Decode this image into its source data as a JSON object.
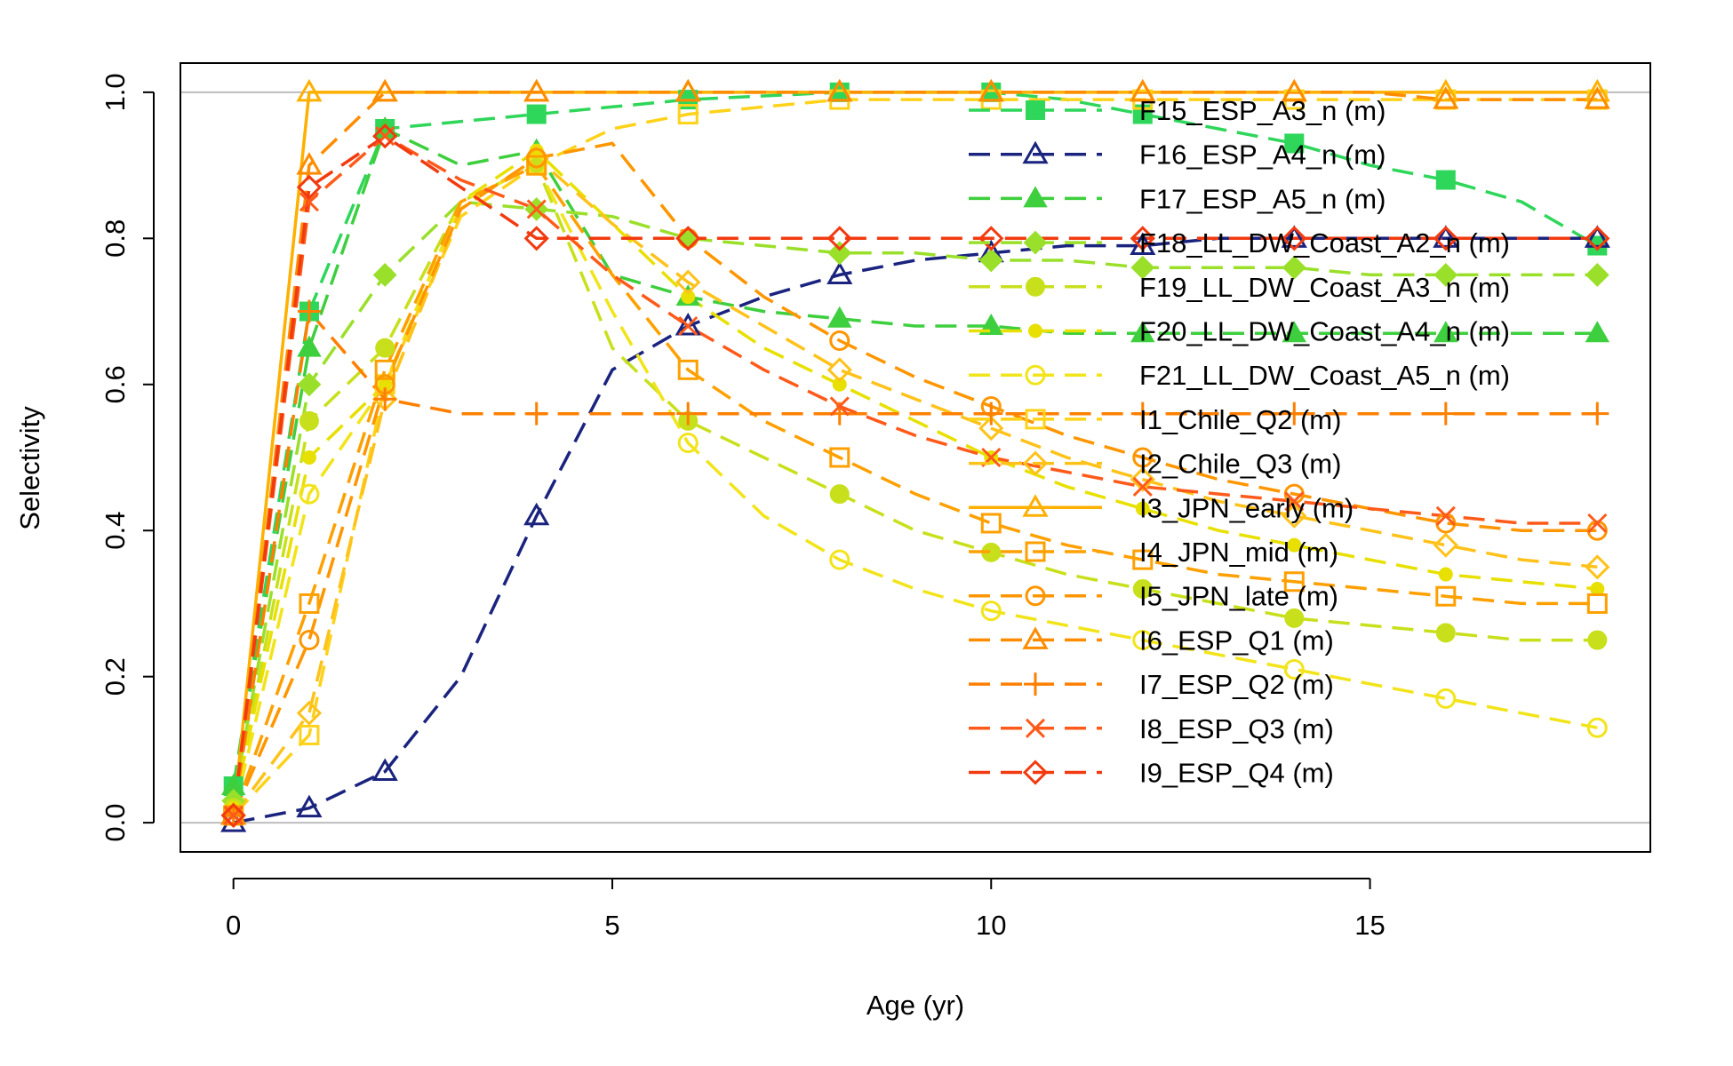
{
  "chart_data": {
    "type": "line",
    "xlabel": "Age (yr)",
    "ylabel": "Selectivity",
    "xlim": [
      -0.7,
      18.7
    ],
    "ylim": [
      -0.04,
      1.04
    ],
    "x_ticks": [
      0,
      5,
      10,
      15
    ],
    "y_ticks": [
      0.0,
      0.2,
      0.4,
      0.6,
      0.8,
      1.0
    ],
    "x_tick_labels": [
      "0",
      "5",
      "10",
      "15"
    ],
    "y_tick_labels": [
      "0.0",
      "0.2",
      "0.4",
      "0.6",
      "0.8",
      "1.0"
    ],
    "reference_lines": [
      0,
      1
    ],
    "legend_position": "top-right",
    "x": [
      0,
      1,
      2,
      3,
      4,
      5,
      6,
      7,
      8,
      9,
      10,
      11,
      12,
      13,
      14,
      15,
      16,
      17,
      18
    ],
    "series": [
      {
        "label": "F15_ESP_A3_n (m)",
        "color": "#2ed65a",
        "dash": "dashed",
        "marker": "square-filled",
        "values": [
          0.05,
          0.7,
          0.95,
          0.96,
          0.97,
          0.98,
          0.99,
          0.995,
          1.0,
          1.0,
          1.0,
          0.99,
          0.97,
          0.95,
          0.93,
          0.9,
          0.88,
          0.85,
          0.79
        ]
      },
      {
        "label": "F16_ESP_A4_n (m)",
        "color": "#1a237e",
        "dash": "dashed",
        "marker": "triangle-open",
        "values": [
          0.0,
          0.02,
          0.07,
          0.2,
          0.42,
          0.62,
          0.68,
          0.72,
          0.75,
          0.77,
          0.78,
          0.79,
          0.79,
          0.8,
          0.8,
          0.8,
          0.8,
          0.8,
          0.8
        ]
      },
      {
        "label": "F17_ESP_A5_n (m)",
        "color": "#3ecf3e",
        "dash": "dashed",
        "marker": "triangle-filled",
        "values": [
          0.05,
          0.65,
          0.95,
          0.9,
          0.92,
          0.75,
          0.72,
          0.7,
          0.69,
          0.68,
          0.68,
          0.67,
          0.67,
          0.67,
          0.67,
          0.67,
          0.67,
          0.67,
          0.67
        ]
      },
      {
        "label": "F18_LL_DW_Coast_A2_n (m)",
        "color": "#9ae02a",
        "dash": "dashed",
        "marker": "diamond-filled",
        "values": [
          0.03,
          0.6,
          0.75,
          0.85,
          0.84,
          0.83,
          0.8,
          0.79,
          0.78,
          0.78,
          0.77,
          0.77,
          0.76,
          0.76,
          0.76,
          0.75,
          0.75,
          0.75,
          0.75
        ]
      },
      {
        "label": "F19_LL_DW_Coast_A3_n (m)",
        "color": "#c8e01c",
        "dash": "dashed",
        "marker": "circle-filled",
        "values": [
          0.02,
          0.55,
          0.65,
          0.85,
          0.9,
          0.65,
          0.55,
          0.5,
          0.45,
          0.4,
          0.37,
          0.34,
          0.32,
          0.3,
          0.28,
          0.27,
          0.26,
          0.25,
          0.25
        ]
      },
      {
        "label": "F20_LL_DW_Coast_A4_n (m)",
        "color": "#e8e000",
        "dash": "dashed",
        "marker": "dot",
        "values": [
          0.02,
          0.5,
          0.6,
          0.85,
          0.92,
          0.82,
          0.72,
          0.65,
          0.6,
          0.55,
          0.5,
          0.46,
          0.43,
          0.4,
          0.38,
          0.36,
          0.34,
          0.33,
          0.32
        ]
      },
      {
        "label": "F21_LL_DW_Coast_A5_n (m)",
        "color": "#f2e41a",
        "dash": "dashed",
        "marker": "circle-open",
        "values": [
          0.01,
          0.45,
          0.6,
          0.85,
          0.9,
          0.7,
          0.52,
          0.42,
          0.36,
          0.32,
          0.29,
          0.27,
          0.25,
          0.23,
          0.21,
          0.19,
          0.17,
          0.15,
          0.13
        ]
      },
      {
        "label": "I1_Chile_Q2 (m)",
        "color": "#ffd21a",
        "dash": "dashed",
        "marker": "square-open",
        "values": [
          0.01,
          0.12,
          0.6,
          0.83,
          0.9,
          0.95,
          0.97,
          0.98,
          0.99,
          0.99,
          0.99,
          0.99,
          0.99,
          0.99,
          0.99,
          0.99,
          0.99,
          0.99,
          0.99
        ]
      },
      {
        "label": "I2_Chile_Q3 (m)",
        "color": "#ffc21a",
        "dash": "dashed",
        "marker": "diamond-open",
        "values": [
          0.01,
          0.15,
          0.58,
          0.84,
          0.91,
          0.82,
          0.74,
          0.68,
          0.62,
          0.58,
          0.54,
          0.5,
          0.47,
          0.44,
          0.42,
          0.4,
          0.38,
          0.36,
          0.35
        ]
      },
      {
        "label": "I3_JPN_early (m)",
        "color": "#ffb000",
        "dash": "solid",
        "marker": "triangle-open",
        "values": [
          0.01,
          1.0,
          1.0,
          1.0,
          1.0,
          1.0,
          1.0,
          1.0,
          1.0,
          1.0,
          1.0,
          1.0,
          1.0,
          1.0,
          1.0,
          1.0,
          1.0,
          1.0,
          1.0
        ]
      },
      {
        "label": "I4_JPN_mid (m)",
        "color": "#ffa000",
        "dash": "dashed",
        "marker": "square-open",
        "values": [
          0.01,
          0.3,
          0.62,
          0.85,
          0.9,
          0.75,
          0.62,
          0.55,
          0.5,
          0.45,
          0.41,
          0.38,
          0.36,
          0.34,
          0.33,
          0.32,
          0.31,
          0.3,
          0.3
        ]
      },
      {
        "label": "I5_JPN_late (m)",
        "color": "#ff9600",
        "dash": "dashed",
        "marker": "circle-open",
        "values": [
          0.01,
          0.25,
          0.6,
          0.84,
          0.91,
          0.93,
          0.8,
          0.72,
          0.66,
          0.61,
          0.57,
          0.53,
          0.5,
          0.47,
          0.45,
          0.43,
          0.41,
          0.4,
          0.4
        ]
      },
      {
        "label": "I6_ESP_Q1 (m)",
        "color": "#ff8c00",
        "dash": "dashed",
        "marker": "triangle-open",
        "values": [
          0.01,
          0.9,
          1.0,
          1.0,
          1.0,
          1.0,
          1.0,
          1.0,
          1.0,
          1.0,
          1.0,
          1.0,
          1.0,
          1.0,
          1.0,
          1.0,
          0.99,
          0.99,
          0.99
        ]
      },
      {
        "label": "I7_ESP_Q2 (m)",
        "color": "#ff7f00",
        "dash": "dashed",
        "marker": "plus",
        "values": [
          0.01,
          0.7,
          0.58,
          0.56,
          0.56,
          0.56,
          0.56,
          0.56,
          0.56,
          0.56,
          0.56,
          0.56,
          0.56,
          0.56,
          0.56,
          0.56,
          0.56,
          0.56,
          0.56
        ]
      },
      {
        "label": "I8_ESP_Q3 (m)",
        "color": "#ff5a1a",
        "dash": "dashed",
        "marker": "cross",
        "values": [
          0.01,
          0.85,
          0.94,
          0.88,
          0.84,
          0.75,
          0.68,
          0.62,
          0.57,
          0.53,
          0.5,
          0.48,
          0.46,
          0.45,
          0.44,
          0.43,
          0.42,
          0.41,
          0.41
        ]
      },
      {
        "label": "I9_ESP_Q4 (m)",
        "color": "#f23a10",
        "dash": "dashed",
        "marker": "diamond-open",
        "values": [
          0.01,
          0.87,
          0.94,
          0.87,
          0.8,
          0.8,
          0.8,
          0.8,
          0.8,
          0.8,
          0.8,
          0.8,
          0.8,
          0.8,
          0.8,
          0.8,
          0.8,
          0.8,
          0.8
        ]
      }
    ]
  }
}
